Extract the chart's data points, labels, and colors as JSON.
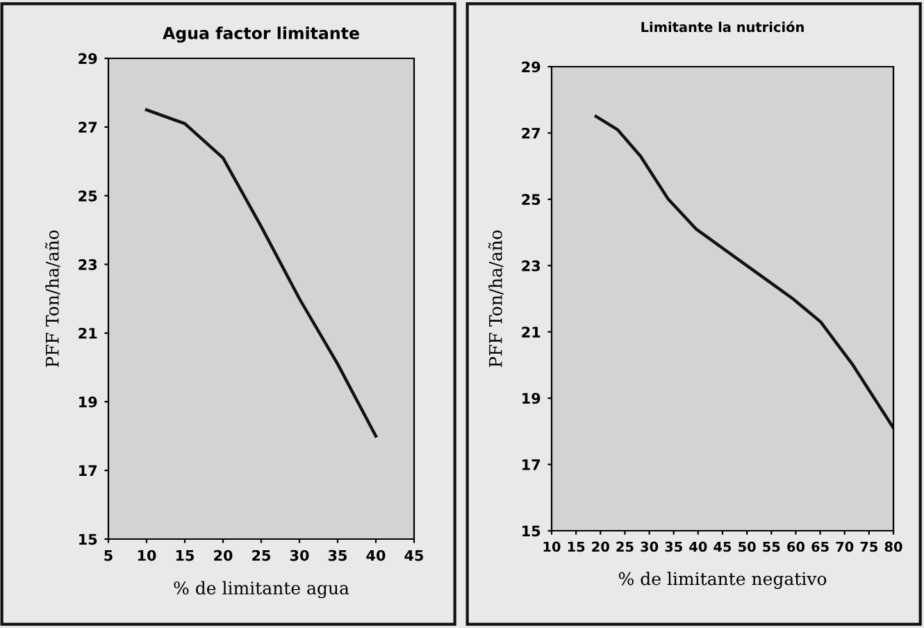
{
  "chart_data": [
    {
      "type": "line",
      "title": "Agua factor limitante",
      "xlabel": "% de limitante agua",
      "ylabel": "PFF Ton/ha/año",
      "x": [
        10,
        15,
        20,
        25,
        30,
        35,
        40
      ],
      "series": [
        {
          "color": "#111111",
          "values": [
            27.5,
            27.1,
            26.1,
            24.1,
            22.0,
            20.1,
            18.0
          ]
        }
      ],
      "xlim": [
        5,
        45
      ],
      "xticks": [
        5,
        10,
        15,
        20,
        25,
        30,
        35,
        40,
        45
      ],
      "ylim": [
        15,
        29
      ],
      "yticks": [
        15,
        17,
        19,
        21,
        23,
        25,
        27,
        29
      ],
      "grid": false,
      "legend": false,
      "marker": "none",
      "line_style": "solid"
    },
    {
      "type": "line",
      "title": "Limitante la nutrición",
      "xlabel": "% de limitante negativo",
      "ylabel": "PFF Ton/ha/año",
      "x": [
        19.1,
        23.5,
        28.2,
        33.9,
        39.6,
        46.2,
        52.8,
        59.4,
        65.1,
        71.7,
        80
      ],
      "series": [
        {
          "color": "#111111",
          "values": [
            27.5,
            27.1,
            26.3,
            25.0,
            24.1,
            23.4,
            22.7,
            22.0,
            21.3,
            20.0,
            18.1
          ]
        }
      ],
      "xlim": [
        10,
        80
      ],
      "xticks": [
        10,
        15,
        20,
        25,
        30,
        35,
        40,
        45,
        50,
        55,
        60,
        65,
        70,
        75,
        80
      ],
      "ylim": [
        15,
        29
      ],
      "yticks": [
        15,
        17,
        19,
        21,
        23,
        25,
        27,
        29
      ],
      "grid": false,
      "legend": false,
      "marker": "none",
      "line_style": "solid"
    }
  ]
}
